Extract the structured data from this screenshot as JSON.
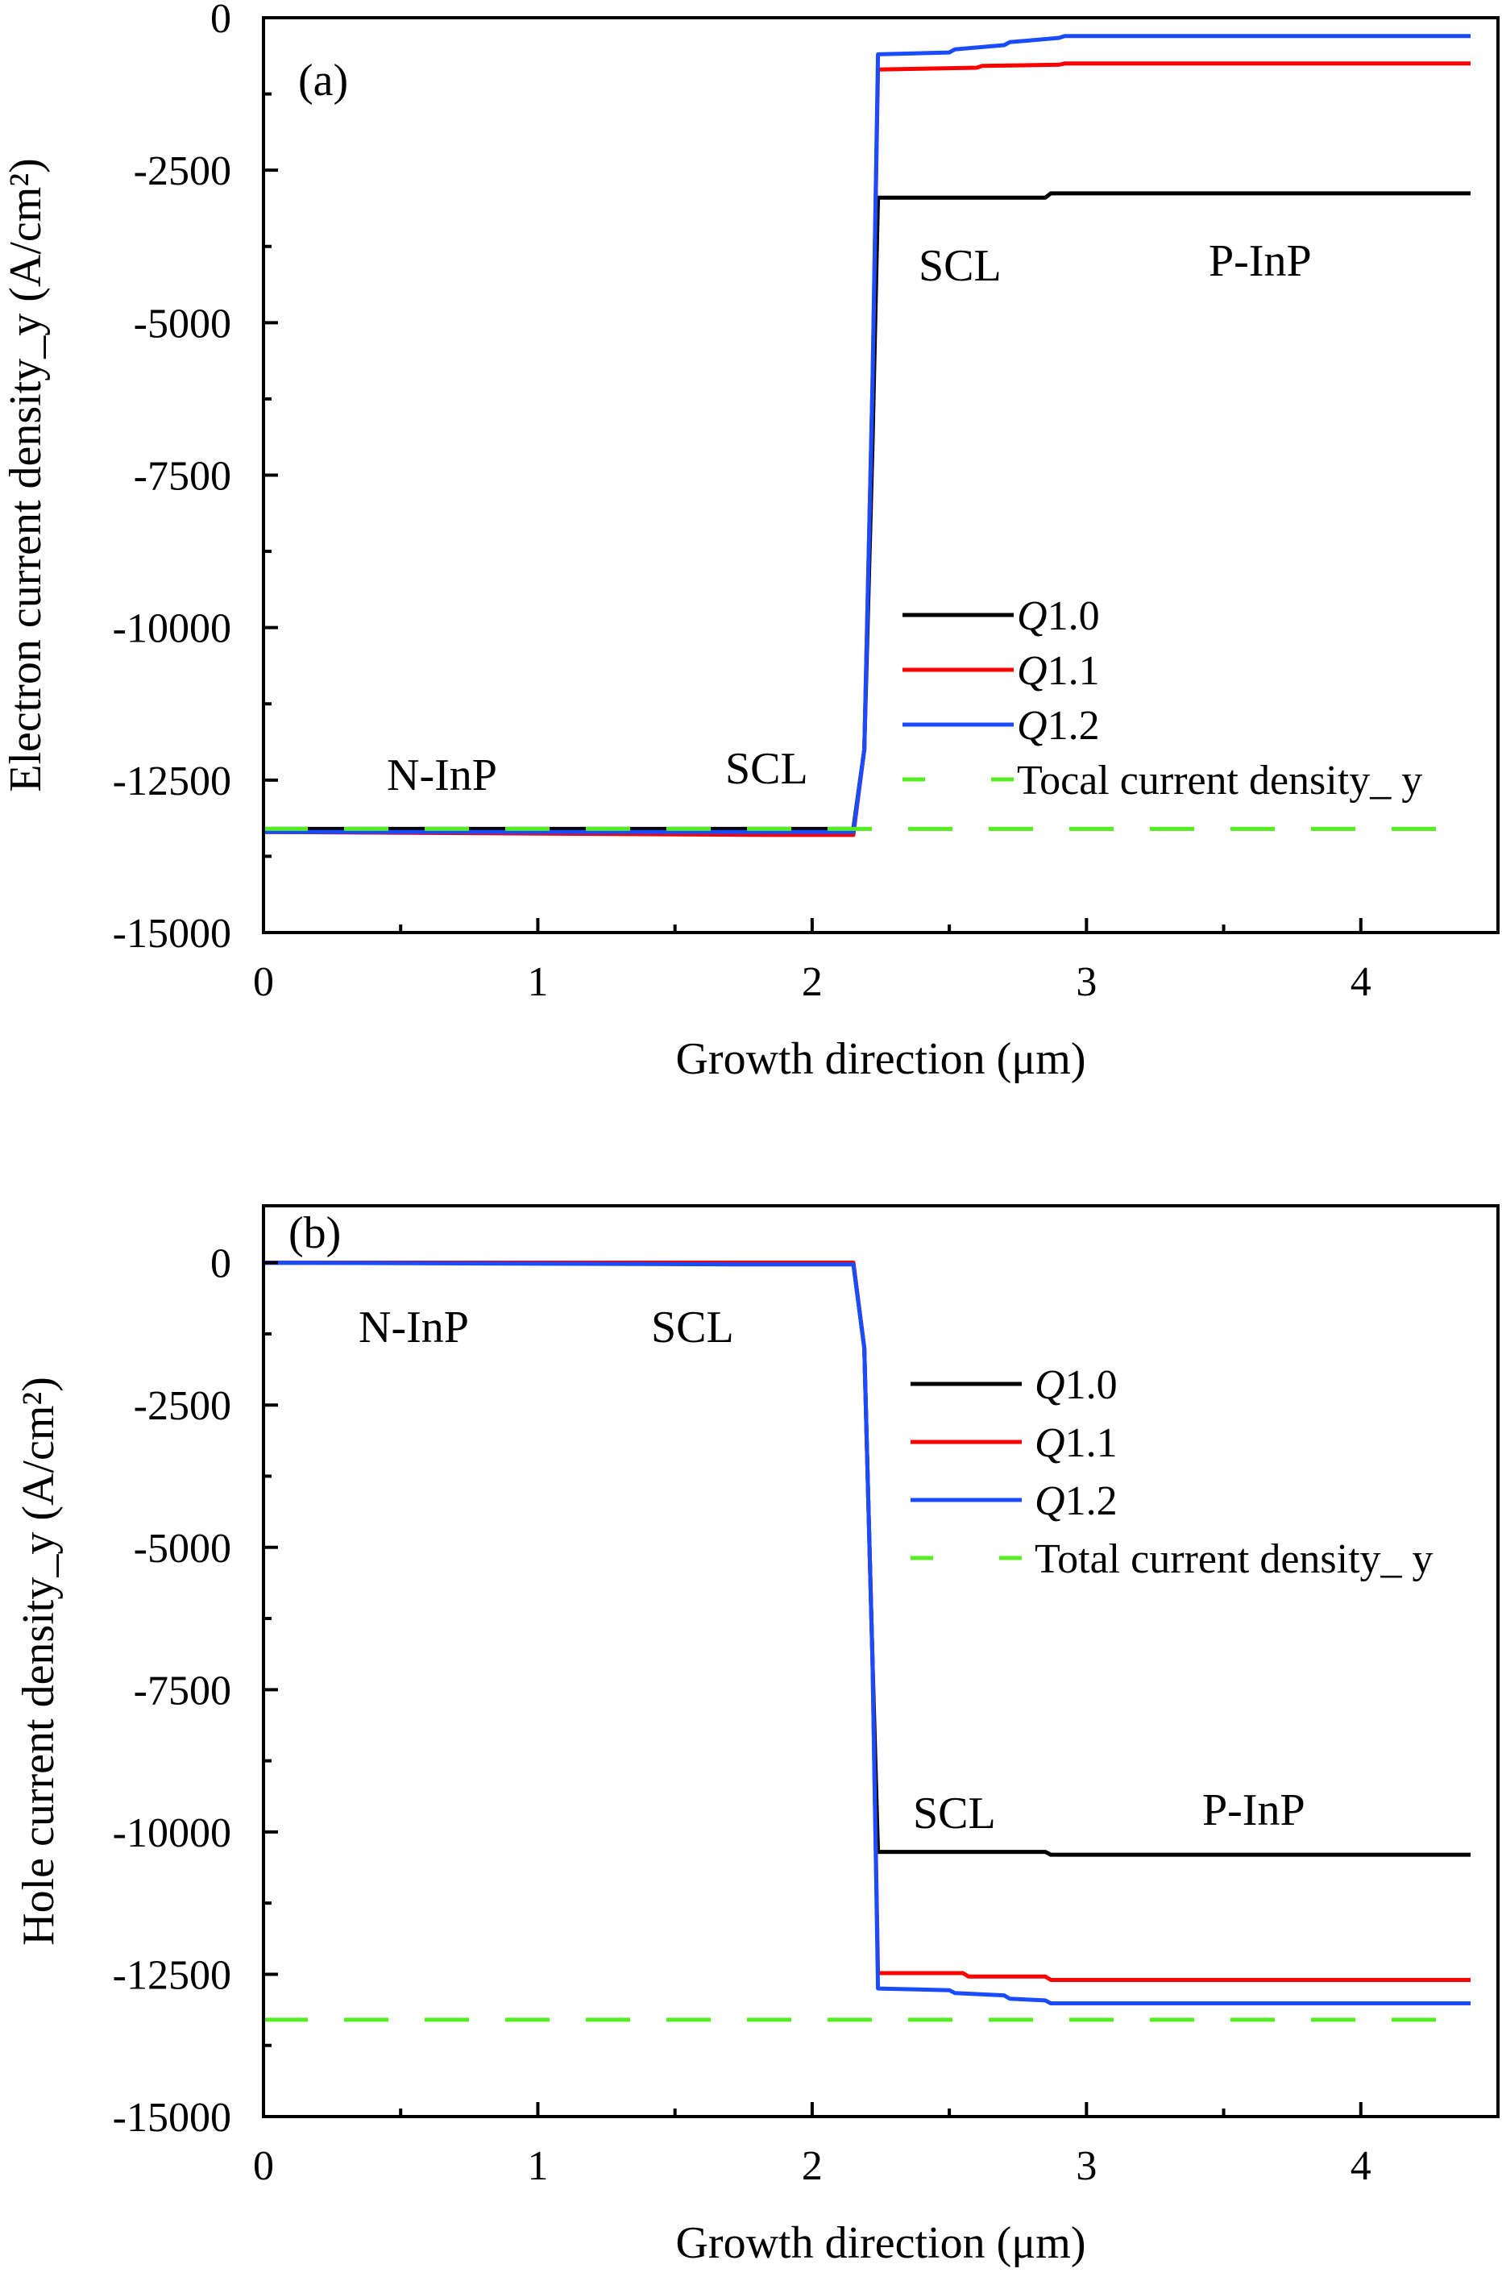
{
  "chart_data": [
    {
      "type": "line",
      "panel_label": "(a)",
      "xlabel": "Growth direction (μm)",
      "ylabel": "Electron current density_y (A/cm²)",
      "xlim": [
        0,
        4.5
      ],
      "ylim": [
        -15000,
        0
      ],
      "xticks": [
        0,
        1,
        2,
        3,
        4
      ],
      "yticks": [
        0,
        -2500,
        -5000,
        -7500,
        -10000,
        -12500,
        -15000
      ],
      "grid": false,
      "legend_placement": "center-right",
      "annotations": [
        "N-InP",
        "SCL",
        "SCL",
        "P-InP"
      ],
      "series": [
        {
          "name": "Q1.0",
          "color": "#000000",
          "dash": false,
          "x": [
            0,
            2.15,
            2.19,
            2.22,
            2.24,
            2.85,
            2.87,
            4.4
          ],
          "y": [
            -13300,
            -13300,
            -12000,
            -7000,
            -2950,
            -2950,
            -2880,
            -2880
          ]
        },
        {
          "name": "Q1.1",
          "color": "#ff0000",
          "dash": false,
          "x": [
            0,
            1.85,
            2.15,
            2.19,
            2.22,
            2.24,
            2.6,
            2.62,
            2.9,
            2.92,
            4.4
          ],
          "y": [
            -13350,
            -13400,
            -13400,
            -12000,
            -6000,
            -850,
            -820,
            -790,
            -770,
            -750,
            -750
          ]
        },
        {
          "name": "Q1.2",
          "color": "#1a4cff",
          "dash": false,
          "x": [
            0,
            2.15,
            2.19,
            2.22,
            2.24,
            2.5,
            2.52,
            2.7,
            2.72,
            2.9,
            2.92,
            4.4
          ],
          "y": [
            -13350,
            -13350,
            -12000,
            -6000,
            -600,
            -570,
            -520,
            -450,
            -400,
            -330,
            -300,
            -300
          ]
        },
        {
          "name": "Tocal current density_ y",
          "color": "#55ee22",
          "dash": true,
          "x": [
            0,
            4.4
          ],
          "y": [
            -13300,
            -13300
          ]
        }
      ]
    },
    {
      "type": "line",
      "panel_label": "(b)",
      "xlabel": "Growth direction (μm)",
      "ylabel": "Hole current density_y (A/cm²)",
      "xlim": [
        0,
        4.5
      ],
      "ylim": [
        -15000,
        1000
      ],
      "xticks": [
        0,
        1,
        2,
        3,
        4
      ],
      "yticks": [
        0,
        -2500,
        -5000,
        -7500,
        -10000,
        -12500,
        -15000
      ],
      "grid": false,
      "legend_placement": "top-right",
      "annotations": [
        "N-InP",
        "SCL",
        "SCL",
        "P-InP"
      ],
      "series": [
        {
          "name": "Q1.0",
          "color": "#000000",
          "dash": false,
          "x": [
            0,
            2.15,
            2.19,
            2.22,
            2.24,
            2.85,
            2.87,
            4.4
          ],
          "y": [
            0,
            0,
            -1500,
            -7000,
            -10350,
            -10350,
            -10400,
            -10400
          ]
        },
        {
          "name": "Q1.1",
          "color": "#ff0000",
          "dash": false,
          "x": [
            0,
            2.15,
            2.19,
            2.22,
            2.24,
            2.55,
            2.57,
            2.85,
            2.87,
            4.4
          ],
          "y": [
            0,
            0,
            -1500,
            -7000,
            -12480,
            -12480,
            -12540,
            -12540,
            -12600,
            -12600
          ]
        },
        {
          "name": "Q1.2",
          "color": "#1a4cff",
          "dash": false,
          "x": [
            0,
            1.7,
            2.15,
            2.19,
            2.22,
            2.24,
            2.5,
            2.52,
            2.7,
            2.72,
            2.85,
            2.87,
            4.4
          ],
          "y": [
            0,
            -30,
            -30,
            -1500,
            -7000,
            -12750,
            -12780,
            -12830,
            -12870,
            -12930,
            -12960,
            -13010,
            -13010
          ]
        },
        {
          "name": "Total current density_ y",
          "color": "#55ee22",
          "dash": true,
          "x": [
            0,
            4.4
          ],
          "y": [
            -13300,
            -13300
          ]
        }
      ]
    }
  ]
}
